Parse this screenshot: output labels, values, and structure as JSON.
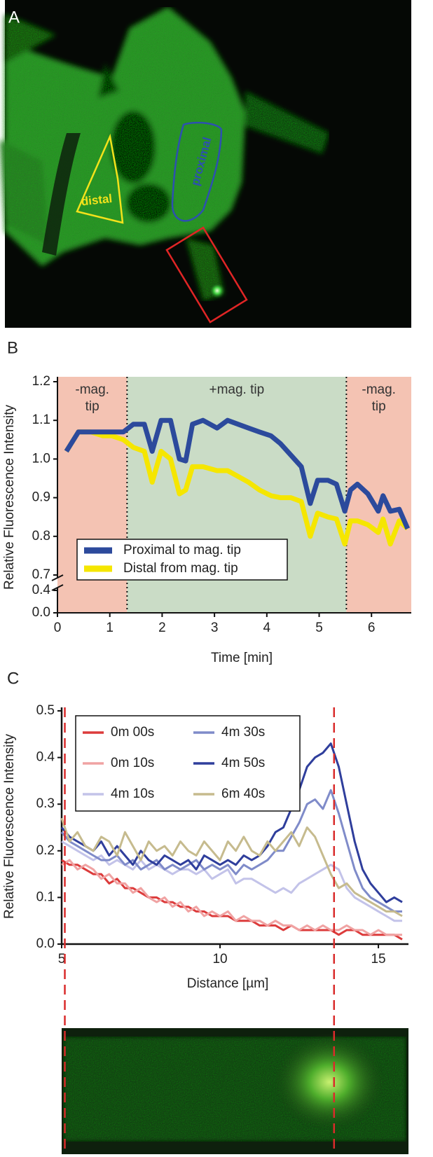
{
  "chart_data": [
    {
      "type": "image",
      "label": "A",
      "annotations": [
        {
          "text": "distal",
          "color": "#f3e21b"
        },
        {
          "text": "proximal",
          "color": "#2d50b0"
        }
      ]
    },
    {
      "type": "line",
      "label": "B",
      "xlabel": "Time [min]",
      "ylabel": "Relative Fluorescence Intensity",
      "x": [
        0.17,
        0.4,
        0.64,
        0.87,
        1.04,
        1.26,
        1.45,
        1.66,
        1.81,
        1.98,
        2.16,
        2.33,
        2.45,
        2.58,
        2.78,
        3.05,
        3.25,
        3.45,
        3.65,
        3.86,
        4.08,
        4.26,
        4.46,
        4.66,
        4.83,
        4.97,
        5.17,
        5.33,
        5.49,
        5.6,
        5.73,
        5.93,
        6.13,
        6.22,
        6.36,
        6.53,
        6.69
      ],
      "series": [
        {
          "name": "Proximal to mag. tip",
          "color": "#2c4a9c",
          "values": [
            1.02,
            1.07,
            1.07,
            1.07,
            1.07,
            1.07,
            1.09,
            1.09,
            1.02,
            1.1,
            1.1,
            1.0,
            0.995,
            1.09,
            1.1,
            1.08,
            1.1,
            1.09,
            1.08,
            1.07,
            1.06,
            1.04,
            1.01,
            0.98,
            0.885,
            0.945,
            0.945,
            0.935,
            0.865,
            0.92,
            0.935,
            0.91,
            0.865,
            0.905,
            0.865,
            0.87,
            0.82
          ]
        },
        {
          "name": "Distal from mag. tip",
          "color": "#f5e600",
          "values": [
            1.02,
            1.07,
            1.07,
            1.06,
            1.06,
            1.05,
            1.03,
            1.02,
            0.94,
            1.02,
            1.0,
            0.91,
            0.92,
            0.98,
            0.98,
            0.97,
            0.97,
            0.955,
            0.94,
            0.92,
            0.905,
            0.9,
            0.9,
            0.89,
            0.8,
            0.86,
            0.85,
            0.845,
            0.78,
            0.84,
            0.84,
            0.83,
            0.81,
            0.845,
            0.78,
            0.84,
            0.82
          ]
        }
      ],
      "xlim": [
        0,
        6.76
      ],
      "xticks": [
        0,
        1,
        2,
        3,
        4,
        5,
        6
      ],
      "ylim": [
        0,
        1.2
      ],
      "ybreak": [
        0.4,
        0.7
      ],
      "yticks": [
        {
          "value": 0,
          "label": "0.0"
        },
        0.4,
        0.7,
        0.8,
        0.9,
        {
          "value": 1,
          "label": "1.0"
        },
        1.1,
        1.2
      ],
      "regions": [
        {
          "label": "-mag. tip",
          "start": 0,
          "end": 1.33,
          "color": "#f4c3b3"
        },
        {
          "label": "+mag. tip",
          "start": 1.33,
          "end": 5.52,
          "color": "#cadcc6"
        },
        {
          "label": "-mag. tip",
          "start": 5.52,
          "end": 6.76,
          "color": "#f4c3b3"
        }
      ],
      "legend": "lower left"
    },
    {
      "type": "line",
      "label": "C",
      "xlabel": "Distance [µm]",
      "ylabel": "Relative Fluorescence Intensity",
      "x": [
        5,
        5.25,
        5.5,
        5.75,
        6,
        6.25,
        6.5,
        6.75,
        7,
        7.25,
        7.5,
        7.75,
        8,
        8.25,
        8.5,
        8.75,
        9,
        9.25,
        9.5,
        9.75,
        10,
        10.25,
        10.5,
        10.75,
        11,
        11.25,
        11.5,
        11.75,
        12,
        12.25,
        12.5,
        12.75,
        13,
        13.25,
        13.5,
        13.75,
        14,
        14.25,
        14.5,
        14.75,
        15,
        15.25,
        15.5,
        15.75
      ],
      "series": [
        {
          "name": "0m 00s",
          "color": "#dc3b3b",
          "values": [
            0.18,
            0.17,
            0.17,
            0.16,
            0.15,
            0.15,
            0.13,
            0.14,
            0.12,
            0.12,
            0.11,
            0.1,
            0.1,
            0.09,
            0.09,
            0.08,
            0.08,
            0.07,
            0.07,
            0.06,
            0.06,
            0.06,
            0.05,
            0.05,
            0.05,
            0.04,
            0.04,
            0.04,
            0.03,
            0.04,
            0.03,
            0.03,
            0.03,
            0.03,
            0.03,
            0.02,
            0.03,
            0.03,
            0.02,
            0.02,
            0.02,
            0.02,
            0.02,
            0.01
          ]
        },
        {
          "name": "0m 10s",
          "color": "#f0a3a3",
          "values": [
            0.17,
            0.18,
            0.16,
            0.17,
            0.16,
            0.14,
            0.15,
            0.13,
            0.13,
            0.11,
            0.12,
            0.1,
            0.09,
            0.1,
            0.08,
            0.09,
            0.07,
            0.08,
            0.06,
            0.07,
            0.06,
            0.07,
            0.05,
            0.06,
            0.05,
            0.05,
            0.04,
            0.05,
            0.04,
            0.04,
            0.03,
            0.04,
            0.03,
            0.04,
            0.03,
            0.03,
            0.04,
            0.03,
            0.03,
            0.02,
            0.03,
            0.02,
            0.02,
            0.02
          ]
        },
        {
          "name": "4m 10s",
          "color": "#c3c3e9",
          "values": [
            0.22,
            0.21,
            0.2,
            0.19,
            0.18,
            0.19,
            0.17,
            0.18,
            0.17,
            0.16,
            0.18,
            0.16,
            0.17,
            0.16,
            0.15,
            0.16,
            0.16,
            0.15,
            0.16,
            0.14,
            0.15,
            0.16,
            0.13,
            0.14,
            0.14,
            0.13,
            0.12,
            0.11,
            0.12,
            0.11,
            0.13,
            0.14,
            0.15,
            0.16,
            0.17,
            0.16,
            0.12,
            0.1,
            0.09,
            0.08,
            0.07,
            0.06,
            0.05,
            0.05
          ]
        },
        {
          "name": "4m 30s",
          "color": "#7f8bc9",
          "values": [
            0.24,
            0.22,
            0.21,
            0.2,
            0.19,
            0.18,
            0.18,
            0.19,
            0.17,
            0.18,
            0.16,
            0.17,
            0.18,
            0.16,
            0.17,
            0.16,
            0.17,
            0.18,
            0.16,
            0.17,
            0.16,
            0.17,
            0.15,
            0.17,
            0.16,
            0.17,
            0.18,
            0.2,
            0.2,
            0.23,
            0.26,
            0.3,
            0.31,
            0.29,
            0.33,
            0.28,
            0.22,
            0.16,
            0.12,
            0.1,
            0.09,
            0.08,
            0.07,
            0.07
          ]
        },
        {
          "name": "4m 50s",
          "color": "#2f3e9c",
          "values": [
            0.25,
            0.23,
            0.22,
            0.21,
            0.2,
            0.22,
            0.19,
            0.21,
            0.19,
            0.17,
            0.2,
            0.18,
            0.17,
            0.19,
            0.18,
            0.17,
            0.18,
            0.16,
            0.19,
            0.18,
            0.17,
            0.18,
            0.17,
            0.19,
            0.18,
            0.19,
            0.21,
            0.24,
            0.25,
            0.29,
            0.33,
            0.38,
            0.4,
            0.41,
            0.43,
            0.38,
            0.3,
            0.22,
            0.16,
            0.13,
            0.11,
            0.09,
            0.1,
            0.09
          ]
        },
        {
          "name": "6m 40s",
          "color": "#c6bb8e",
          "values": [
            0.27,
            0.22,
            0.24,
            0.21,
            0.2,
            0.23,
            0.22,
            0.19,
            0.24,
            0.21,
            0.18,
            0.22,
            0.2,
            0.21,
            0.19,
            0.22,
            0.2,
            0.19,
            0.22,
            0.2,
            0.18,
            0.22,
            0.2,
            0.23,
            0.2,
            0.19,
            0.22,
            0.2,
            0.22,
            0.24,
            0.21,
            0.25,
            0.23,
            0.19,
            0.15,
            0.12,
            0.13,
            0.11,
            0.1,
            0.09,
            0.08,
            0.07,
            0.07,
            0.06
          ]
        }
      ],
      "xlim": [
        5,
        15.95
      ],
      "xticks": [
        5,
        10,
        15
      ],
      "ylim": [
        0,
        0.5
      ],
      "yticks": [
        {
          "value": 0,
          "label": "0.0"
        },
        0.1,
        0.2,
        0.3,
        0.4,
        0.5
      ],
      "vlines": [
        5.1,
        13.6
      ],
      "vline_color": "#d92b2b",
      "legend": "upper left"
    }
  ]
}
